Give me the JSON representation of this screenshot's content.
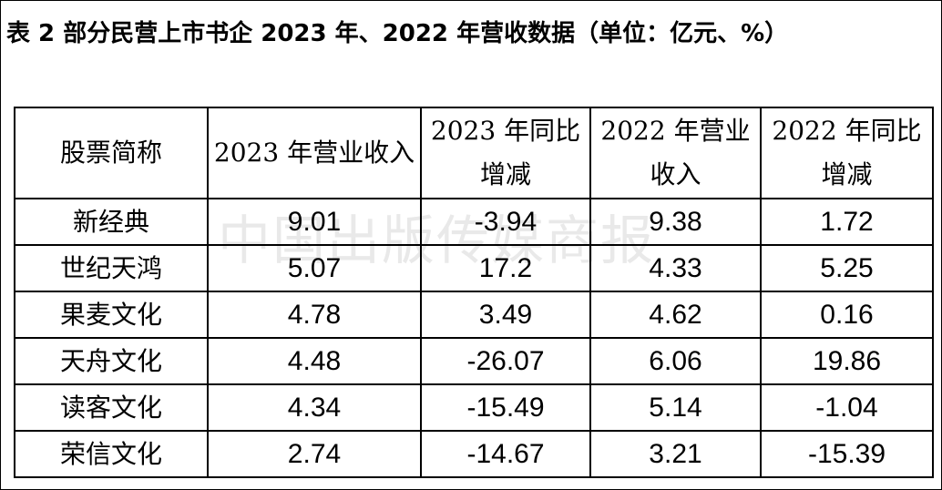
{
  "caption": "表 2  部分民营上市书企 2023 年、2022 年营收数据（单位：亿元、%）",
  "watermark": "中国出版传媒商报",
  "table": {
    "headers": [
      "股票简称",
      "2023 年营业收入",
      "2023 年同比增减",
      "2022 年营业收入",
      "2022 年同比增减"
    ],
    "rows": [
      [
        "新经典",
        "9.01",
        "-3.94",
        "9.38",
        "1.72"
      ],
      [
        "世纪天鸿",
        "5.07",
        "17.2",
        "4.33",
        "5.25"
      ],
      [
        "果麦文化",
        "4.78",
        "3.49",
        "4.62",
        "0.16"
      ],
      [
        "天舟文化",
        "4.48",
        "-26.07",
        "6.06",
        "19.86"
      ],
      [
        "读客文化",
        "4.34",
        "-15.49",
        "5.14",
        "-1.04"
      ],
      [
        "荣信文化",
        "2.74",
        "-14.67",
        "3.21",
        "-15.39"
      ]
    ]
  }
}
